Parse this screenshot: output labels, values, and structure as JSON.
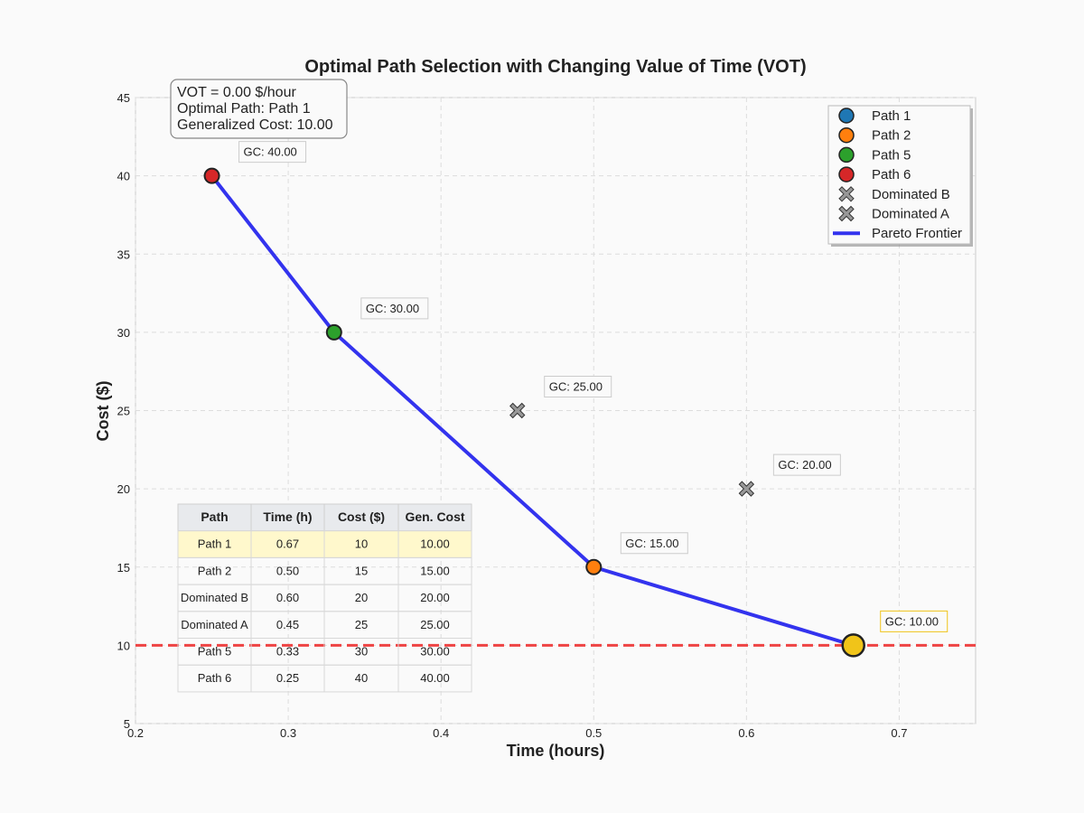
{
  "chart_data": {
    "type": "scatter",
    "title": "Optimal Path Selection with Changing Value of Time (VOT)",
    "xlabel": "Time (hours)",
    "ylabel": "Cost ($)",
    "xlim": [
      0.2,
      0.75
    ],
    "ylim": [
      5,
      45
    ],
    "xticks": [
      0.2,
      0.3,
      0.4,
      0.5,
      0.6,
      0.7
    ],
    "yticks": [
      5,
      10,
      15,
      20,
      25,
      30,
      35,
      40,
      45
    ],
    "grid": true,
    "legend_position": "top-right",
    "points": [
      {
        "name": "Path 1",
        "time": 0.67,
        "cost": 10,
        "gc": "GC: 10.00",
        "color": "#1f77b4",
        "marker": "circle",
        "optimal": true
      },
      {
        "name": "Path 2",
        "time": 0.5,
        "cost": 15,
        "gc": "GC: 15.00",
        "color": "#ff7f0e",
        "marker": "circle"
      },
      {
        "name": "Path 5",
        "time": 0.33,
        "cost": 30,
        "gc": "GC: 30.00",
        "color": "#2ca02c",
        "marker": "circle"
      },
      {
        "name": "Path 6",
        "time": 0.25,
        "cost": 40,
        "gc": "GC: 40.00",
        "color": "#d62728",
        "marker": "circle"
      },
      {
        "name": "Dominated B",
        "time": 0.6,
        "cost": 20,
        "gc": "GC: 20.00",
        "color": "#999999",
        "marker": "x"
      },
      {
        "name": "Dominated A",
        "time": 0.45,
        "cost": 25,
        "gc": "GC: 25.00",
        "color": "#999999",
        "marker": "x"
      }
    ],
    "optimal_highlight_color": "#f0c419",
    "frontier": {
      "name": "Pareto Frontier",
      "color": "#3333ee",
      "points": [
        [
          0.25,
          40
        ],
        [
          0.33,
          30
        ],
        [
          0.5,
          15
        ],
        [
          0.67,
          10
        ]
      ]
    },
    "cost_line": {
      "value": 10,
      "color": "#ee4444"
    },
    "legend": [
      "Path 1",
      "Path 2",
      "Path 5",
      "Path 6",
      "Dominated B",
      "Dominated A",
      "Pareto Frontier"
    ],
    "info_box": {
      "vot": "VOT = 0.00 $/hour",
      "optimal": "Optimal Path: Path 1",
      "cost": "Generalized Cost: 10.00"
    },
    "table": {
      "headers": [
        "Path",
        "Time (h)",
        "Cost ($)",
        "Gen. Cost"
      ],
      "rows": [
        [
          "Path 1",
          "0.67",
          "10",
          "10.00"
        ],
        [
          "Path 2",
          "0.50",
          "15",
          "15.00"
        ],
        [
          "Dominated B",
          "0.60",
          "20",
          "20.00"
        ],
        [
          "Dominated A",
          "0.45",
          "25",
          "25.00"
        ],
        [
          "Path 5",
          "0.33",
          "30",
          "30.00"
        ],
        [
          "Path 6",
          "0.25",
          "40",
          "40.00"
        ]
      ],
      "highlight_row": 0,
      "highlight_color": "#fff8cc",
      "header_color": "#e8eaed"
    }
  }
}
